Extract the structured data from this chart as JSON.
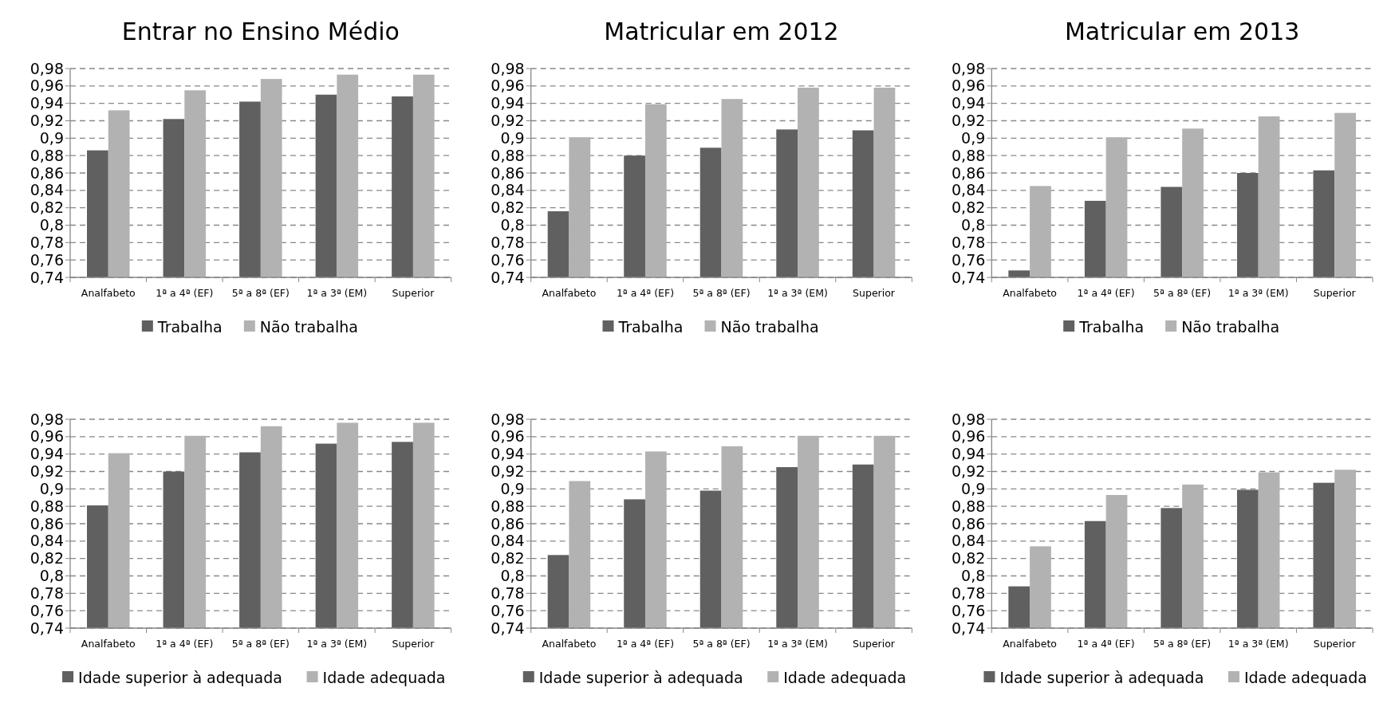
{
  "chart_data": [
    {
      "type": "bar",
      "title": "Entrar no Ensino Médio",
      "categories": [
        "Analfabeto",
        "1ª a 4ª (EF)",
        "5ª a 8ª (EF)",
        "1ª a 3ª (EM)",
        "Superior"
      ],
      "series": [
        {
          "name": "Trabalha",
          "color": "#606060",
          "values": [
            0.886,
            0.922,
            0.942,
            0.95,
            0.948
          ]
        },
        {
          "name": "Não trabalha",
          "color": "#b2b2b2",
          "values": [
            0.932,
            0.955,
            0.968,
            0.973,
            0.973
          ]
        }
      ],
      "ylim": [
        0.74,
        0.98
      ],
      "yticks": [
        {
          "value": 0.74,
          "label": "0,74"
        },
        {
          "value": 0.76,
          "label": "0,76"
        },
        {
          "value": 0.78,
          "label": "0,78"
        },
        {
          "value": 0.8,
          "label": "0,8"
        },
        {
          "value": 0.82,
          "label": "0,82"
        },
        {
          "value": 0.84,
          "label": "0,84"
        },
        {
          "value": 0.86,
          "label": "0,86"
        },
        {
          "value": 0.88,
          "label": "0,88"
        },
        {
          "value": 0.9,
          "label": "0,9"
        },
        {
          "value": 0.92,
          "label": "0,92"
        },
        {
          "value": 0.94,
          "label": "0,94"
        },
        {
          "value": 0.96,
          "label": "0,96"
        },
        {
          "value": 0.98,
          "label": "0,98"
        }
      ],
      "grid": "y",
      "legend": "bottom"
    },
    {
      "type": "bar",
      "title": "Matricular em 2012",
      "categories": [
        "Analfabeto",
        "1ª a 4ª (EF)",
        "5ª a 8ª (EF)",
        "1ª a 3ª (EM)",
        "Superior"
      ],
      "series": [
        {
          "name": "Trabalha",
          "color": "#606060",
          "values": [
            0.816,
            0.88,
            0.889,
            0.91,
            0.909
          ]
        },
        {
          "name": "Não trabalha",
          "color": "#b2b2b2",
          "values": [
            0.901,
            0.939,
            0.945,
            0.958,
            0.958
          ]
        }
      ],
      "ylim": [
        0.74,
        0.98
      ],
      "yticks": [
        {
          "value": 0.74,
          "label": "0,74"
        },
        {
          "value": 0.76,
          "label": "0,76"
        },
        {
          "value": 0.78,
          "label": "0,78"
        },
        {
          "value": 0.8,
          "label": "0,8"
        },
        {
          "value": 0.82,
          "label": "0,82"
        },
        {
          "value": 0.84,
          "label": "0,84"
        },
        {
          "value": 0.86,
          "label": "0,86"
        },
        {
          "value": 0.88,
          "label": "0,88"
        },
        {
          "value": 0.9,
          "label": "0,9"
        },
        {
          "value": 0.92,
          "label": "0,92"
        },
        {
          "value": 0.94,
          "label": "0,94"
        },
        {
          "value": 0.96,
          "label": "0,96"
        },
        {
          "value": 0.98,
          "label": "0,98"
        }
      ],
      "grid": "y",
      "legend": "bottom"
    },
    {
      "type": "bar",
      "title": "Matricular em 2013",
      "categories": [
        "Analfabeto",
        "1ª a 4ª (EF)",
        "5ª a 8ª (EF)",
        "1ª a 3ª (EM)",
        "Superior"
      ],
      "series": [
        {
          "name": "Trabalha",
          "color": "#606060",
          "values": [
            0.748,
            0.828,
            0.844,
            0.86,
            0.863
          ]
        },
        {
          "name": "Não trabalha",
          "color": "#b2b2b2",
          "values": [
            0.845,
            0.901,
            0.911,
            0.925,
            0.929
          ]
        }
      ],
      "ylim": [
        0.74,
        0.98
      ],
      "yticks": [
        {
          "value": 0.74,
          "label": "0,74"
        },
        {
          "value": 0.76,
          "label": "0,76"
        },
        {
          "value": 0.78,
          "label": "0,78"
        },
        {
          "value": 0.8,
          "label": "0,8"
        },
        {
          "value": 0.82,
          "label": "0,82"
        },
        {
          "value": 0.84,
          "label": "0,84"
        },
        {
          "value": 0.86,
          "label": "0,86"
        },
        {
          "value": 0.88,
          "label": "0,88"
        },
        {
          "value": 0.9,
          "label": "0,9"
        },
        {
          "value": 0.92,
          "label": "0,92"
        },
        {
          "value": 0.94,
          "label": "0,94"
        },
        {
          "value": 0.96,
          "label": "0,96"
        },
        {
          "value": 0.98,
          "label": "0,98"
        }
      ],
      "grid": "y",
      "legend": "bottom"
    },
    {
      "type": "bar",
      "categories": [
        "Analfabeto",
        "1ª a 4ª (EF)",
        "5ª a 8ª (EF)",
        "1ª a 3ª (EM)",
        "Superior"
      ],
      "series": [
        {
          "name": "Idade superior à adequada",
          "color": "#606060",
          "values": [
            0.881,
            0.92,
            0.942,
            0.952,
            0.954
          ]
        },
        {
          "name": "Idade adequada",
          "color": "#b2b2b2",
          "values": [
            0.941,
            0.961,
            0.972,
            0.976,
            0.976
          ]
        }
      ],
      "ylim": [
        0.74,
        0.98
      ],
      "yticks": [
        {
          "value": 0.74,
          "label": "0,74"
        },
        {
          "value": 0.76,
          "label": "0,76"
        },
        {
          "value": 0.78,
          "label": "0,78"
        },
        {
          "value": 0.8,
          "label": "0,8"
        },
        {
          "value": 0.82,
          "label": "0,82"
        },
        {
          "value": 0.84,
          "label": "0,84"
        },
        {
          "value": 0.86,
          "label": "0,86"
        },
        {
          "value": 0.88,
          "label": "0,88"
        },
        {
          "value": 0.9,
          "label": "0,9"
        },
        {
          "value": 0.92,
          "label": "0,92"
        },
        {
          "value": 0.94,
          "label": "0,94"
        },
        {
          "value": 0.96,
          "label": "0,96"
        },
        {
          "value": 0.98,
          "label": "0,98"
        }
      ],
      "grid": "y",
      "legend": "bottom"
    },
    {
      "type": "bar",
      "categories": [
        "Analfabeto",
        "1ª a 4ª (EF)",
        "5ª a 8ª (EF)",
        "1ª a 3ª (EM)",
        "Superior"
      ],
      "series": [
        {
          "name": "Idade superior à adequada",
          "color": "#606060",
          "values": [
            0.824,
            0.888,
            0.898,
            0.925,
            0.928
          ]
        },
        {
          "name": "Idade adequada",
          "color": "#b2b2b2",
          "values": [
            0.909,
            0.943,
            0.949,
            0.961,
            0.961
          ]
        }
      ],
      "ylim": [
        0.74,
        0.98
      ],
      "yticks": [
        {
          "value": 0.74,
          "label": "0,74"
        },
        {
          "value": 0.76,
          "label": "0,76"
        },
        {
          "value": 0.78,
          "label": "0,78"
        },
        {
          "value": 0.8,
          "label": "0,8"
        },
        {
          "value": 0.82,
          "label": "0,82"
        },
        {
          "value": 0.84,
          "label": "0,84"
        },
        {
          "value": 0.86,
          "label": "0,86"
        },
        {
          "value": 0.88,
          "label": "0,88"
        },
        {
          "value": 0.9,
          "label": "0,9"
        },
        {
          "value": 0.92,
          "label": "0,92"
        },
        {
          "value": 0.94,
          "label": "0,94"
        },
        {
          "value": 0.96,
          "label": "0,96"
        },
        {
          "value": 0.98,
          "label": "0,98"
        }
      ],
      "grid": "y",
      "legend": "bottom"
    },
    {
      "type": "bar",
      "categories": [
        "Analfabeto",
        "1ª a 4ª (EF)",
        "5ª a 8ª (EF)",
        "1ª a 3ª (EM)",
        "Superior"
      ],
      "series": [
        {
          "name": "Idade superior à adequada",
          "color": "#606060",
          "values": [
            0.788,
            0.863,
            0.878,
            0.899,
            0.907
          ]
        },
        {
          "name": "Idade adequada",
          "color": "#b2b2b2",
          "values": [
            0.834,
            0.893,
            0.905,
            0.919,
            0.922
          ]
        }
      ],
      "ylim": [
        0.74,
        0.98
      ],
      "yticks": [
        {
          "value": 0.74,
          "label": "0,74"
        },
        {
          "value": 0.76,
          "label": "0,76"
        },
        {
          "value": 0.78,
          "label": "0,78"
        },
        {
          "value": 0.8,
          "label": "0,8"
        },
        {
          "value": 0.82,
          "label": "0,82"
        },
        {
          "value": 0.84,
          "label": "0,84"
        },
        {
          "value": 0.86,
          "label": "0,86"
        },
        {
          "value": 0.88,
          "label": "0,88"
        },
        {
          "value": 0.9,
          "label": "0,9"
        },
        {
          "value": 0.92,
          "label": "0,92"
        },
        {
          "value": 0.94,
          "label": "0,94"
        },
        {
          "value": 0.96,
          "label": "0,96"
        },
        {
          "value": 0.98,
          "label": "0,98"
        }
      ],
      "grid": "y",
      "legend": "bottom"
    }
  ]
}
